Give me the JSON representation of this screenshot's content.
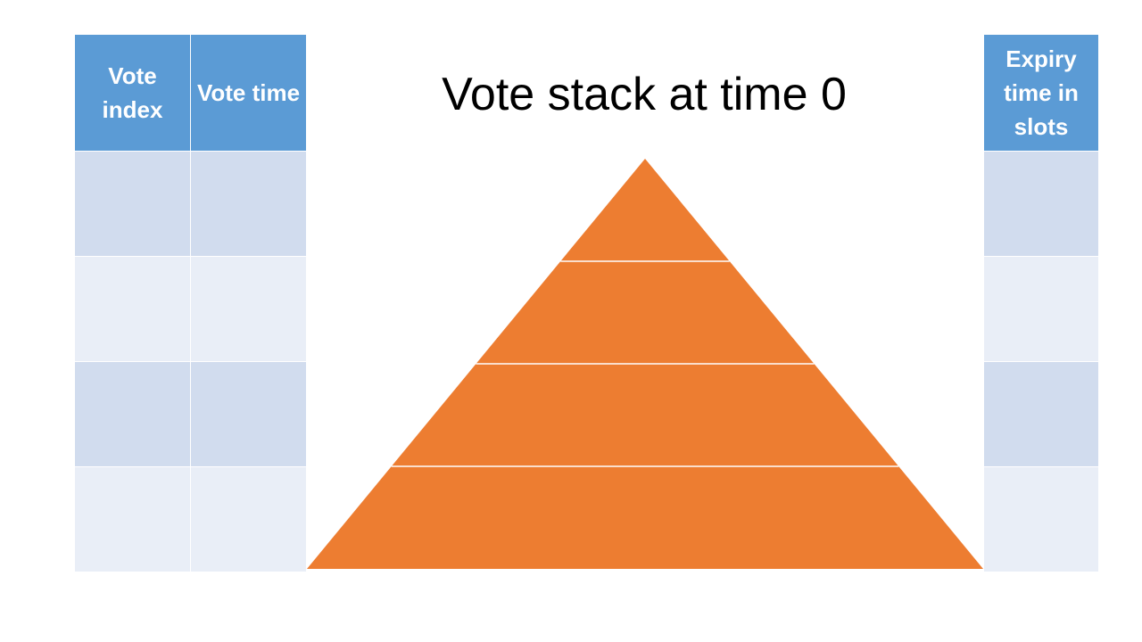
{
  "title": "Vote stack at time 0",
  "left_table": {
    "headers": [
      "Vote index",
      "Vote time"
    ],
    "rows": [
      [
        "",
        ""
      ],
      [
        "",
        ""
      ],
      [
        "",
        ""
      ],
      [
        "",
        ""
      ]
    ]
  },
  "right_table": {
    "header": "Expiry time in slots",
    "rows": [
      [
        ""
      ],
      [
        ""
      ],
      [
        ""
      ],
      [
        ""
      ]
    ]
  },
  "pyramid": {
    "levels": 4,
    "fill_color": "#ed7d31",
    "divider_color": "#ffffff"
  },
  "colors": {
    "header": "#5b9bd5",
    "row_dark": "#d1dcee",
    "row_light": "#e9eef7"
  }
}
